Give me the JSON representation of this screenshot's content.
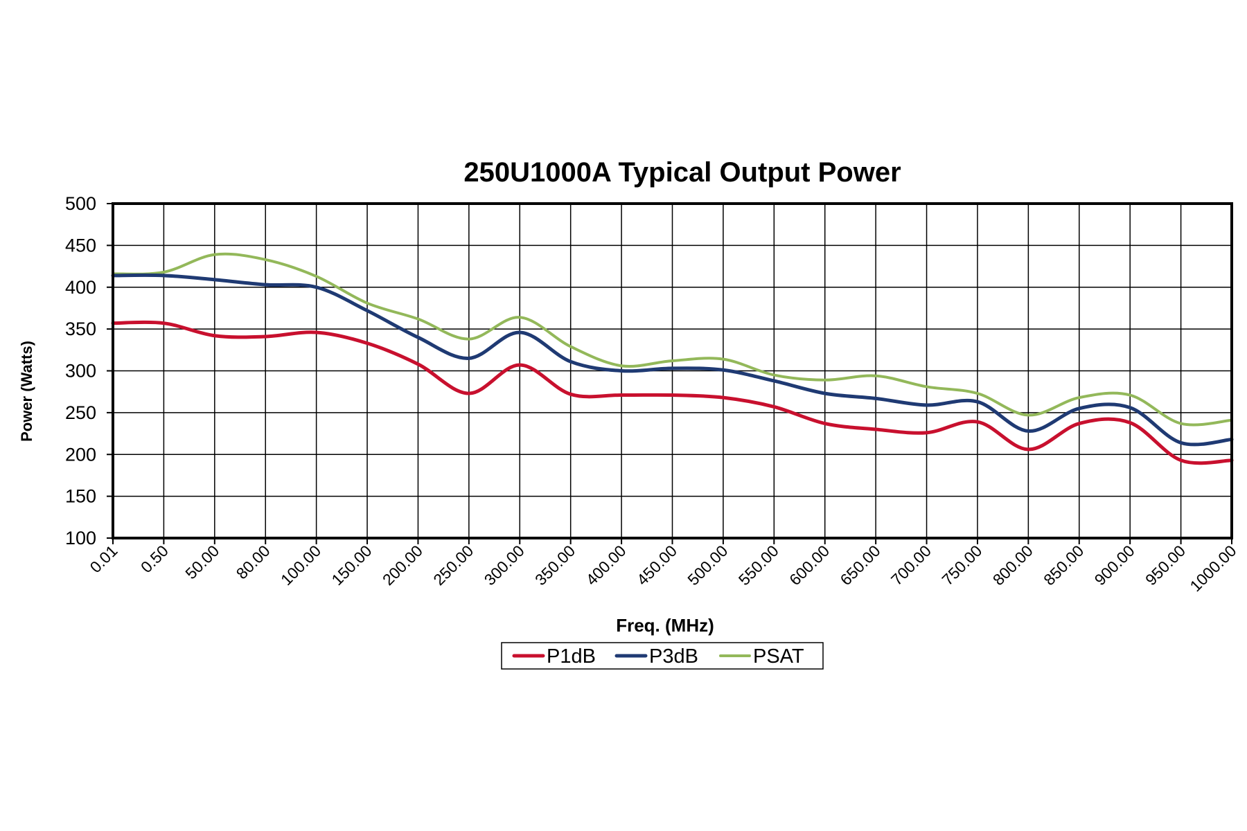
{
  "chart_data": {
    "type": "line",
    "title": "250U1000A Typical Output Power",
    "xlabel": "Freq. (MHz)",
    "ylabel": "Power (Watts)",
    "categories": [
      "0.01",
      "0.50",
      "50.00",
      "80.00",
      "100.00",
      "150.00",
      "200.00",
      "250.00",
      "300.00",
      "350.00",
      "400.00",
      "450.00",
      "500.00",
      "550.00",
      "600.00",
      "650.00",
      "700.00",
      "750.00",
      "800.00",
      "850.00",
      "900.00",
      "950.00",
      "1000.00"
    ],
    "ylim": [
      100,
      500
    ],
    "yticks": [
      100,
      150,
      200,
      250,
      300,
      350,
      400,
      450,
      500
    ],
    "grid": true,
    "legend_position": "bottom-center",
    "series": [
      {
        "name": "P1dB",
        "color": "#c8102e",
        "values": [
          357,
          357,
          342,
          341,
          346,
          333,
          308,
          273,
          307,
          272,
          271,
          271,
          268,
          257,
          237,
          230,
          226,
          239,
          206,
          237,
          238,
          193,
          193
        ]
      },
      {
        "name": "P3dB",
        "color": "#1f3a73",
        "values": [
          414,
          414,
          409,
          403,
          400,
          372,
          340,
          315,
          346,
          311,
          300,
          303,
          301,
          288,
          273,
          267,
          259,
          263,
          228,
          255,
          256,
          214,
          218
        ]
      },
      {
        "name": "PSAT",
        "color": "#93b85a",
        "values": [
          416,
          418,
          439,
          433,
          413,
          381,
          362,
          338,
          364,
          329,
          306,
          312,
          314,
          295,
          289,
          294,
          281,
          273,
          247,
          268,
          271,
          237,
          241
        ]
      }
    ]
  }
}
